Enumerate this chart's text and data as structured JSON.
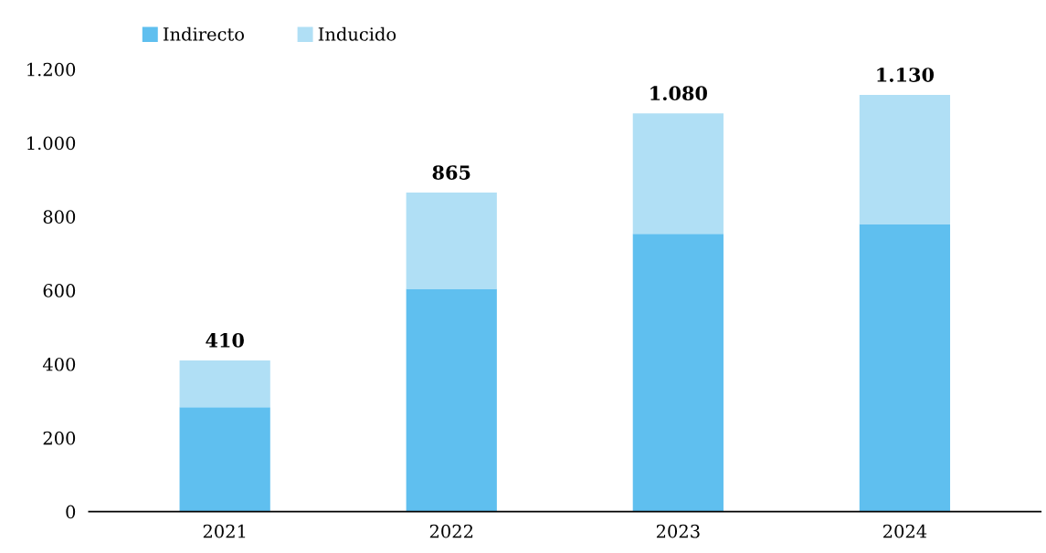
{
  "chart_data": {
    "type": "bar",
    "stacked": true,
    "categories": [
      "2021",
      "2022",
      "2023",
      "2024"
    ],
    "series": [
      {
        "name": "Indirecto",
        "color": "#5fbfef",
        "values": [
          283,
          604,
          753,
          780
        ]
      },
      {
        "name": "Inducido",
        "color": "#b0dff5",
        "values": [
          127,
          261,
          327,
          350
        ]
      }
    ],
    "totals": [
      "410",
      "865",
      "1.080",
      "1.130"
    ],
    "ylim": [
      0,
      1200
    ],
    "yticks": [
      0,
      200,
      400,
      600,
      800,
      {
        "value": 1000,
        "label": "1.000"
      },
      {
        "value": 1200,
        "label": "1.200"
      }
    ],
    "grid": false,
    "legend": "top left"
  }
}
